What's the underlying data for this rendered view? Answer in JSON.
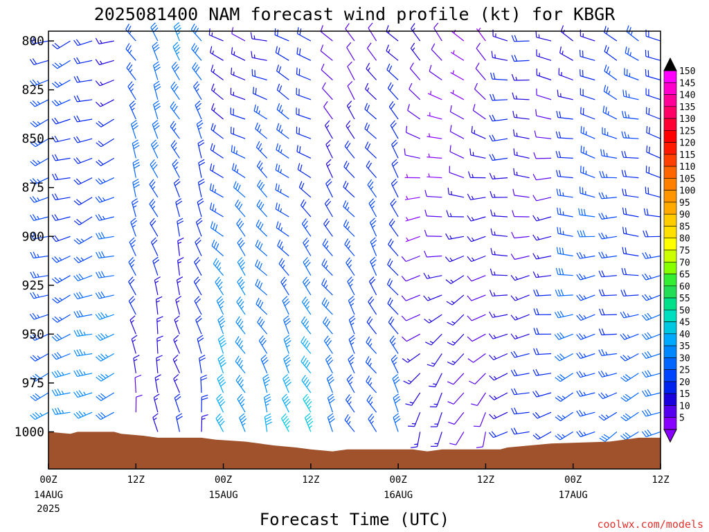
{
  "chart_data": {
    "type": "wind-profile",
    "title": "2025081400 NAM forecast wind profile (kt) for KBGR",
    "xlabel": "Forecast Time (UTC)",
    "credit": "coolwx.com/models",
    "y_ticks": [
      "800",
      "825",
      "850",
      "875",
      "900",
      "925",
      "950",
      "975",
      "1000"
    ],
    "y_range_hpa": [
      795,
      1019
    ],
    "x_range_hours": [
      0,
      84
    ],
    "x_ticks": [
      {
        "hour": 0,
        "label": "00Z",
        "date": "14AUG",
        "year": "2025"
      },
      {
        "hour": 12,
        "label": "12Z",
        "date": "",
        "year": ""
      },
      {
        "hour": 24,
        "label": "00Z",
        "date": "15AUG",
        "year": ""
      },
      {
        "hour": 36,
        "label": "12Z",
        "date": "",
        "year": ""
      },
      {
        "hour": 48,
        "label": "00Z",
        "date": "16AUG",
        "year": ""
      },
      {
        "hour": 60,
        "label": "12Z",
        "date": "",
        "year": ""
      },
      {
        "hour": 72,
        "label": "00Z",
        "date": "17AUG",
        "year": ""
      },
      {
        "hour": 84,
        "label": "12Z",
        "date": "",
        "year": ""
      }
    ],
    "colorbar": {
      "levels": [
        150,
        145,
        140,
        135,
        130,
        125,
        120,
        115,
        110,
        105,
        100,
        95,
        90,
        85,
        80,
        75,
        70,
        65,
        60,
        55,
        50,
        45,
        40,
        35,
        30,
        25,
        20,
        15,
        10,
        5
      ],
      "colors": [
        "#ff00ff",
        "#ff00cc",
        "#ff0099",
        "#ff0066",
        "#ff0033",
        "#ff0000",
        "#ff1a00",
        "#ff4000",
        "#ff6600",
        "#ff7f00",
        "#ff9500",
        "#ffaa00",
        "#ffcc00",
        "#ffe000",
        "#ffff00",
        "#ccff00",
        "#88ff00",
        "#33ee33",
        "#22dd55",
        "#00e08a",
        "#00e0c0",
        "#00c8e0",
        "#00aaff",
        "#0088ff",
        "#0066ff",
        "#0044ff",
        "#0022ee",
        "#1a00dd",
        "#5500ee",
        "#8800ff"
      ]
    },
    "terrain_color": "#a0522d",
    "surface_pressure_hpa": [
      {
        "hour": 0,
        "p": 1000
      },
      {
        "hour": 3,
        "p": 1001
      },
      {
        "hour": 4,
        "p": 1000
      },
      {
        "hour": 9,
        "p": 1000
      },
      {
        "hour": 10,
        "p": 1001
      },
      {
        "hour": 13,
        "p": 1002
      },
      {
        "hour": 15,
        "p": 1003
      },
      {
        "hour": 21,
        "p": 1003
      },
      {
        "hour": 23,
        "p": 1004
      },
      {
        "hour": 27,
        "p": 1005
      },
      {
        "hour": 29,
        "p": 1006
      },
      {
        "hour": 31,
        "p": 1007
      },
      {
        "hour": 34,
        "p": 1008
      },
      {
        "hour": 36,
        "p": 1009
      },
      {
        "hour": 39,
        "p": 1010
      },
      {
        "hour": 41,
        "p": 1009
      },
      {
        "hour": 50,
        "p": 1009
      },
      {
        "hour": 52,
        "p": 1010
      },
      {
        "hour": 54,
        "p": 1009
      },
      {
        "hour": 62,
        "p": 1009
      },
      {
        "hour": 63,
        "p": 1008
      },
      {
        "hour": 66,
        "p": 1007
      },
      {
        "hour": 69,
        "p": 1006
      },
      {
        "hour": 77,
        "p": 1005
      },
      {
        "hour": 79,
        "p": 1004
      },
      {
        "hour": 81,
        "p": 1003
      },
      {
        "hour": 84,
        "p": 1003
      }
    ],
    "barb_hours": [
      0,
      3,
      6,
      9,
      12,
      15,
      18,
      21,
      24,
      27,
      30,
      33,
      36,
      39,
      42,
      45,
      48,
      51,
      54,
      57,
      60,
      63,
      66,
      69,
      72,
      75,
      78,
      81,
      84
    ],
    "barb_levels_hpa": [
      800,
      810,
      820,
      830,
      840,
      850,
      860,
      870,
      880,
      890,
      900,
      910,
      920,
      930,
      940,
      950,
      960,
      970,
      980,
      990,
      1000
    ],
    "wind_regimes": [
      {
        "from_hour": 0,
        "to_hour": 11,
        "dir_upper": 250,
        "dir_lower": 250,
        "spd_upper": 18,
        "spd_lower": 34
      },
      {
        "from_hour": 12,
        "to_hour": 23,
        "dir_upper": 330,
        "dir_lower": 350,
        "spd_upper": 30,
        "spd_lower": 14
      },
      {
        "from_hour": 24,
        "to_hour": 36,
        "dir_upper": 290,
        "dir_lower": 340,
        "spd_upper": 15,
        "spd_lower": 40
      },
      {
        "from_hour": 37,
        "to_hour": 49,
        "dir_upper": 320,
        "dir_lower": 330,
        "spd_upper": 12,
        "spd_lower": 30
      },
      {
        "from_hour": 50,
        "to_hour": 62,
        "dir_upper": 320,
        "dir_lower": 200,
        "spd_upper": 10,
        "spd_lower": 12
      },
      {
        "from_hour": 63,
        "to_hour": 71,
        "dir_upper": 280,
        "dir_lower": 250,
        "spd_upper": 14,
        "spd_lower": 18
      },
      {
        "from_hour": 72,
        "to_hour": 84,
        "dir_upper": 300,
        "dir_lower": 240,
        "spd_upper": 20,
        "spd_lower": 28
      }
    ]
  }
}
